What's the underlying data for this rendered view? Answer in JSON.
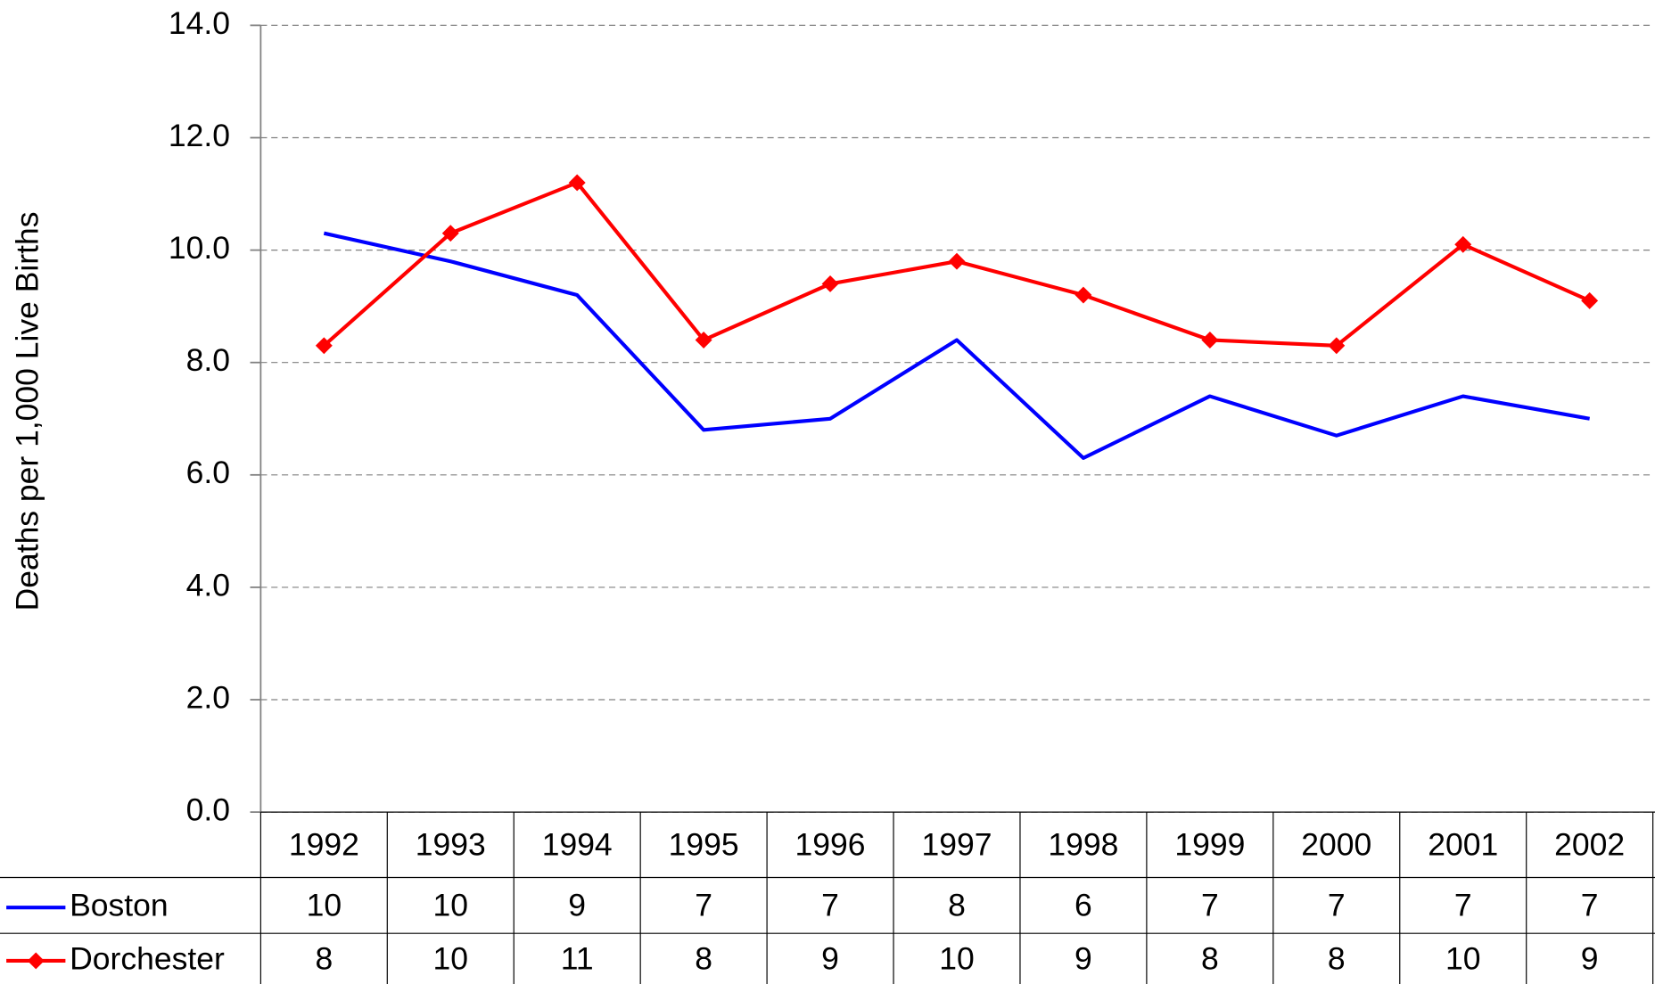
{
  "chart_data": {
    "type": "line",
    "y_label": "Deaths per 1,000 Live Births",
    "categories": [
      "1992",
      "1993",
      "1994",
      "1995",
      "1996",
      "1997",
      "1998",
      "1999",
      "2000",
      "2001",
      "2002"
    ],
    "series": [
      {
        "name": "Boston",
        "color": "#0000ff",
        "marker": "none",
        "values": [
          10.3,
          9.8,
          9.2,
          6.8,
          7.0,
          8.4,
          6.3,
          7.4,
          6.7,
          7.4,
          7.0
        ],
        "value_labels": [
          "10",
          "10",
          "9",
          "7",
          "7",
          "8",
          "6",
          "7",
          "7",
          "7",
          "7"
        ]
      },
      {
        "name": "Dorchester",
        "color": "#ff0000",
        "marker": "diamond",
        "values": [
          8.3,
          10.3,
          11.2,
          8.4,
          9.4,
          9.8,
          9.2,
          8.4,
          8.3,
          10.1,
          9.1
        ],
        "value_labels": [
          "8",
          "10",
          "11",
          "8",
          "9",
          "10",
          "9",
          "8",
          "8",
          "10",
          "9"
        ]
      }
    ],
    "ylim": [
      0,
      14
    ],
    "yticks": [
      {
        "value": 0,
        "label": "0.0"
      },
      {
        "value": 2,
        "label": "2.0"
      },
      {
        "value": 4,
        "label": "4.0"
      },
      {
        "value": 6,
        "label": "6.0"
      },
      {
        "value": 8,
        "label": "8.0"
      },
      {
        "value": 10,
        "label": "10.0"
      },
      {
        "value": 12,
        "label": "12.0"
      },
      {
        "value": 14,
        "label": "14.0"
      }
    ],
    "grid": true,
    "data_table": true
  }
}
